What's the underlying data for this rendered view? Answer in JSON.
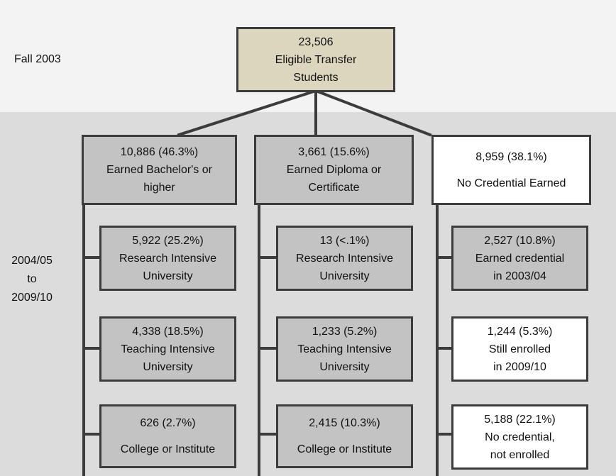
{
  "labels": {
    "period_start": "Fall 2003",
    "period_end": [
      "2004/05",
      "to",
      "2009/10"
    ]
  },
  "root": {
    "lines": [
      "23,506",
      "Eligible Transfer",
      "Students"
    ]
  },
  "columns": [
    {
      "header": {
        "lines": [
          "10,886 (46.3%)",
          "Earned Bachelor's  or",
          "higher"
        ],
        "style": "grey"
      },
      "children": [
        {
          "lines": [
            "5,922 (25.2%)",
            "Research Intensive",
            "University"
          ],
          "style": "grey"
        },
        {
          "lines": [
            "4,338 (18.5%)",
            "Teaching Intensive",
            "University"
          ],
          "style": "grey"
        },
        {
          "lines": [
            "626 (2.7%)",
            "",
            "College or Institute"
          ],
          "style": "grey"
        }
      ]
    },
    {
      "header": {
        "lines": [
          "3,661 (15.6%)",
          "Earned Diploma or",
          "Certificate"
        ],
        "style": "grey"
      },
      "children": [
        {
          "lines": [
            "13 (<.1%)",
            "Research Intensive",
            "University"
          ],
          "style": "grey"
        },
        {
          "lines": [
            "1,233 (5.2%)",
            "Teaching Intensive",
            "University"
          ],
          "style": "grey"
        },
        {
          "lines": [
            "2,415 (10.3%)",
            "",
            "College or Institute"
          ],
          "style": "grey"
        }
      ]
    },
    {
      "header": {
        "lines": [
          "8,959 (38.1%)",
          "",
          "No Credential Earned"
        ],
        "style": "white"
      },
      "children": [
        {
          "lines": [
            "2,527 (10.8%)",
            "Earned credential",
            "in 2003/04"
          ],
          "style": "grey"
        },
        {
          "lines": [
            "1,244 (5.3%)",
            "Still enrolled",
            "in 2009/10"
          ],
          "style": "white"
        },
        {
          "lines": [
            "5,188 (22.1%)",
            "No credential,",
            "not enrolled"
          ],
          "style": "white"
        }
      ]
    }
  ]
}
